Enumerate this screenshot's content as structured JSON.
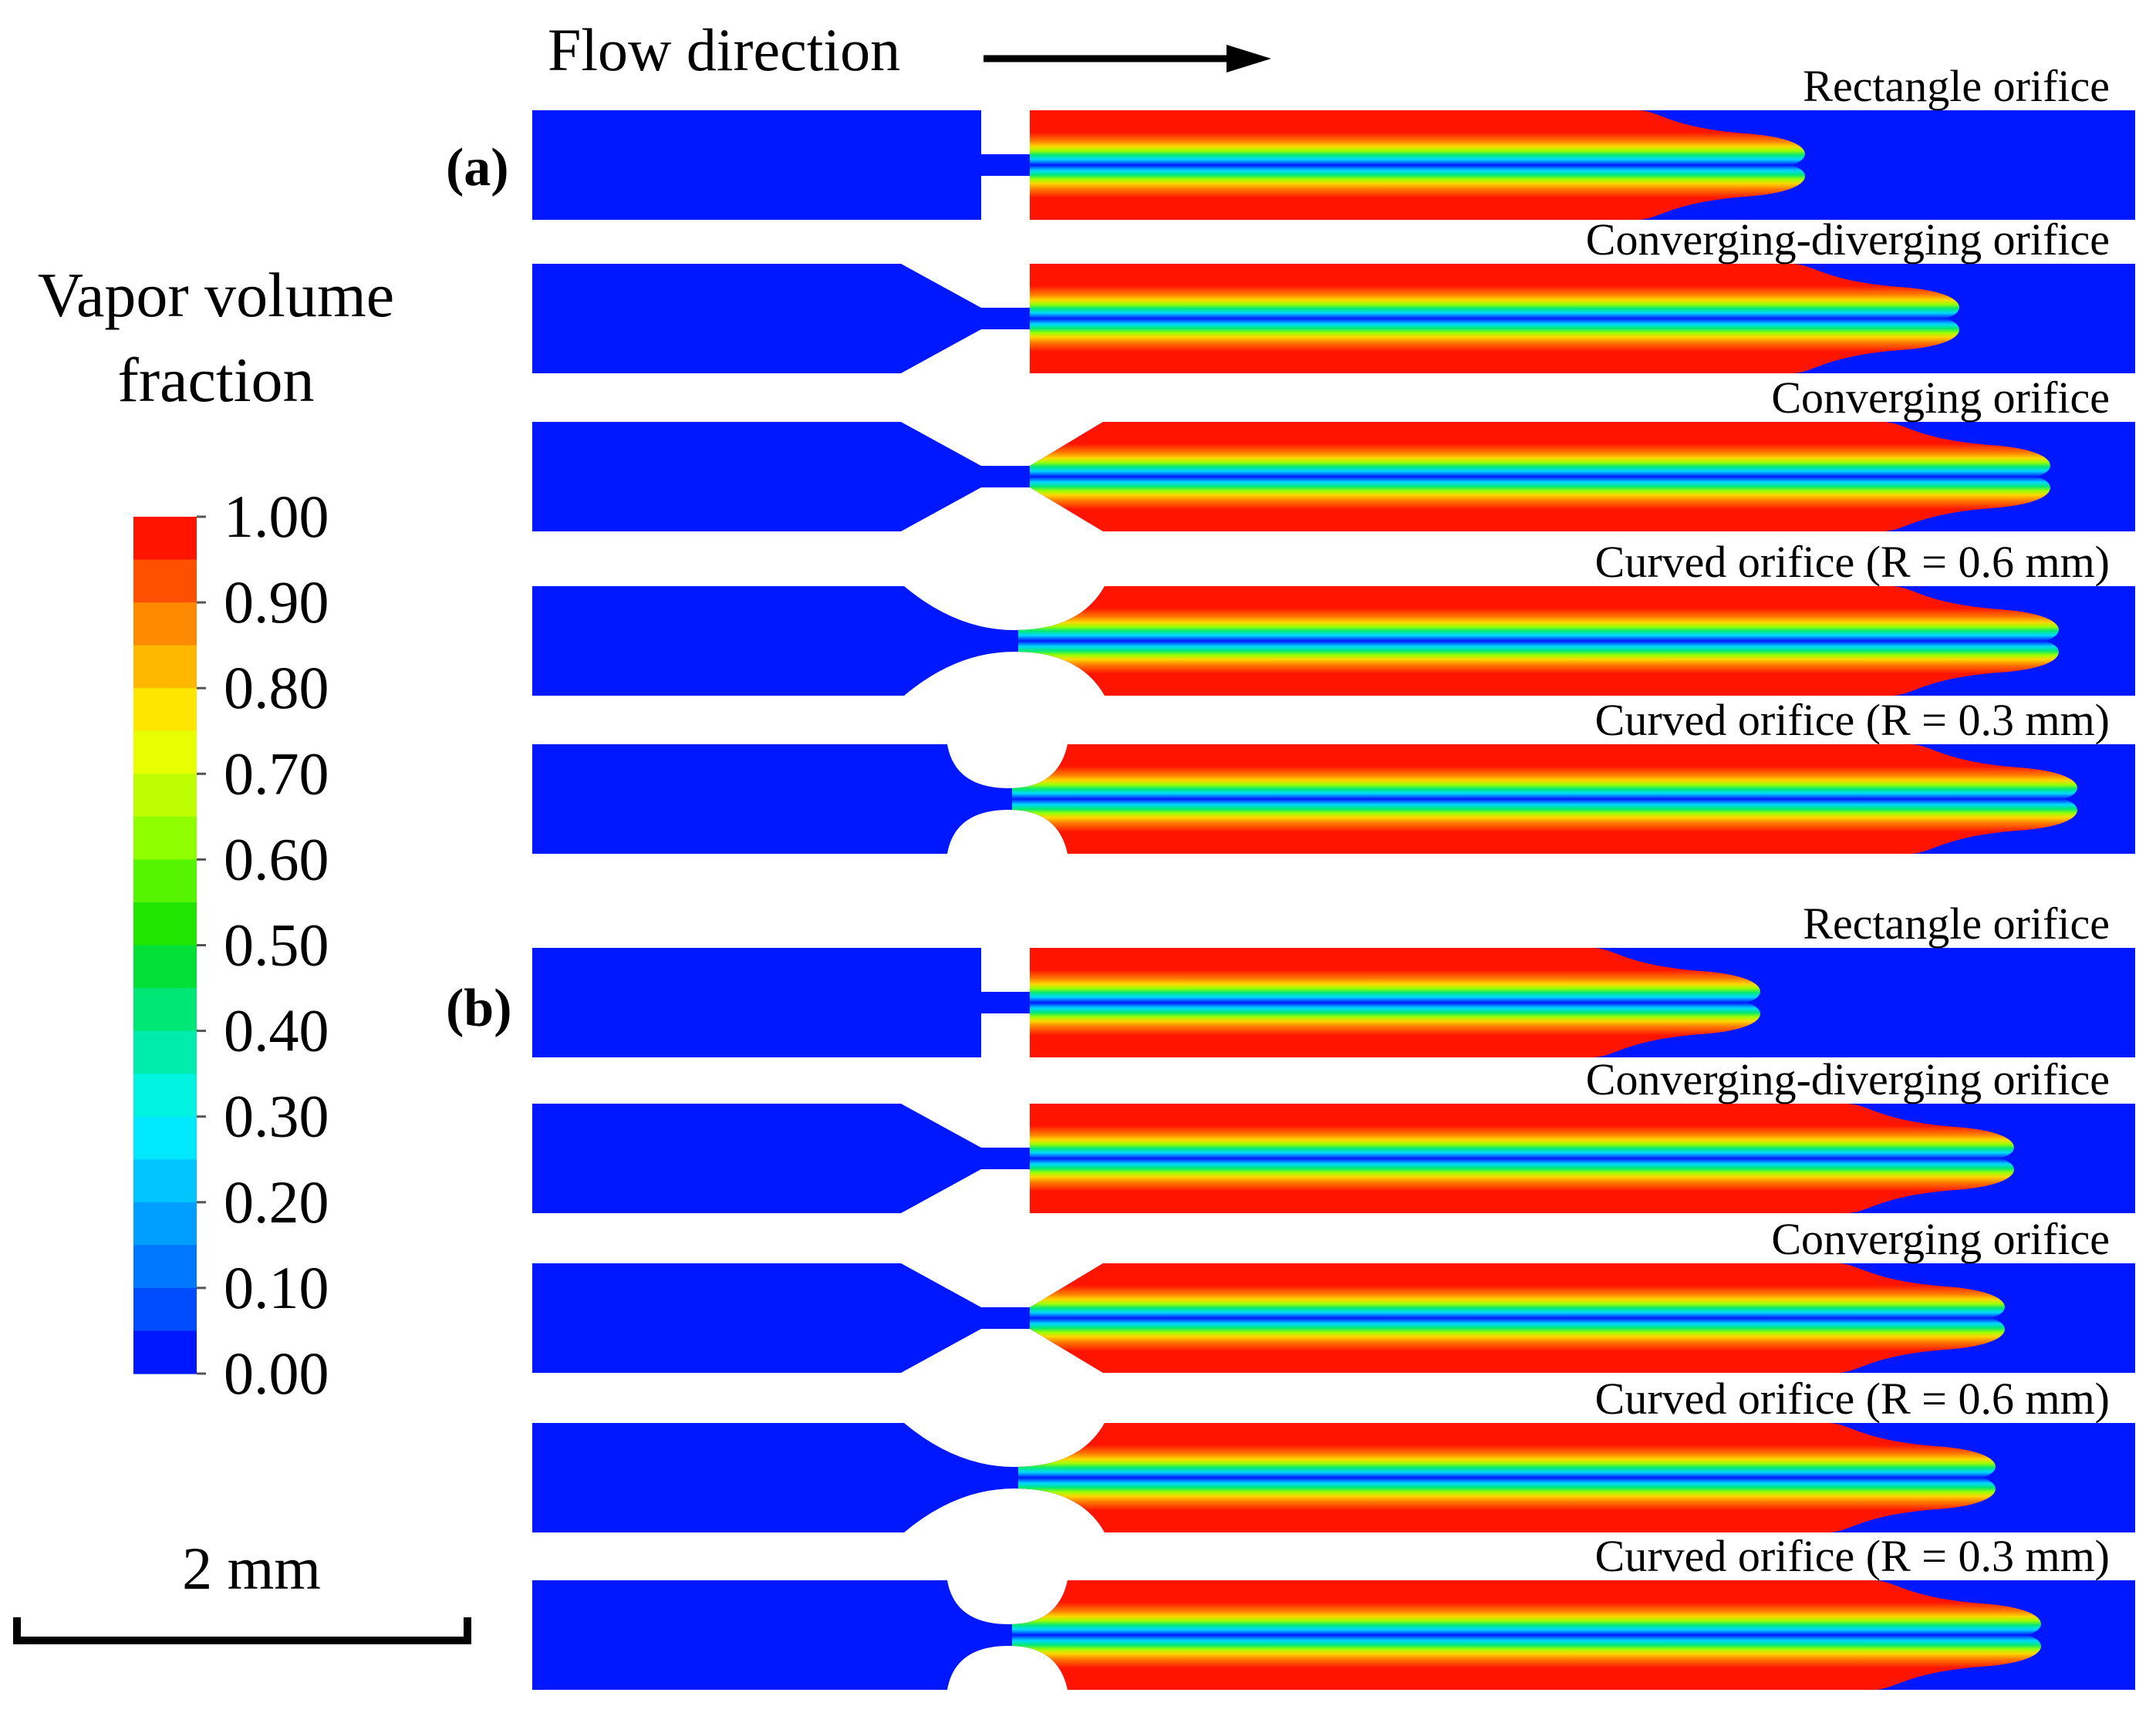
{
  "flow": {
    "label": "Flow direction"
  },
  "legend": {
    "title_line1": "Vapor volume",
    "title_line2": "fraction",
    "ticks": [
      "1.00",
      "0.90",
      "0.80",
      "0.70",
      "0.60",
      "0.50",
      "0.40",
      "0.30",
      "0.20",
      "0.10",
      "0.00"
    ],
    "colors": [
      "#ff1400",
      "#ff5000",
      "#ff8a00",
      "#ffb700",
      "#ffe600",
      "#e7ff00",
      "#bdff00",
      "#8fff00",
      "#55f500",
      "#21e400",
      "#00e037",
      "#00e775",
      "#00ecac",
      "#00f2e0",
      "#00e8ff",
      "#00c5ff",
      "#009fff",
      "#0077ff",
      "#004dff",
      "#0018ff"
    ]
  },
  "scale_bar": {
    "label": "2 mm"
  },
  "panels": [
    {
      "label": "(a)",
      "cases": [
        {
          "title": "Rectangle orifice",
          "shape": "rect",
          "zone_end": 0.67
        },
        {
          "title": "Converging-diverging orifice",
          "shape": "cd",
          "zone_end": 0.84
        },
        {
          "title": "Converging orifice",
          "shape": "conv",
          "zone_end": 0.94
        },
        {
          "title": "Curved orifice (R = 0.6 mm)",
          "shape": "curve06",
          "zone_end": 0.95
        },
        {
          "title": "Curved orifice (R = 0.3 mm)",
          "shape": "curve03",
          "zone_end": 0.97
        }
      ]
    },
    {
      "label": "(b)",
      "cases": [
        {
          "title": "Rectangle orifice",
          "shape": "rect",
          "zone_end": 0.62
        },
        {
          "title": "Converging-diverging orifice",
          "shape": "cd",
          "zone_end": 0.9
        },
        {
          "title": "Converging orifice",
          "shape": "conv",
          "zone_end": 0.89
        },
        {
          "title": "Curved orifice (R = 0.6 mm)",
          "shape": "curve06",
          "zone_end": 0.88
        },
        {
          "title": "Curved orifice (R = 0.3 mm)",
          "shape": "curve03",
          "zone_end": 0.93
        }
      ]
    }
  ]
}
